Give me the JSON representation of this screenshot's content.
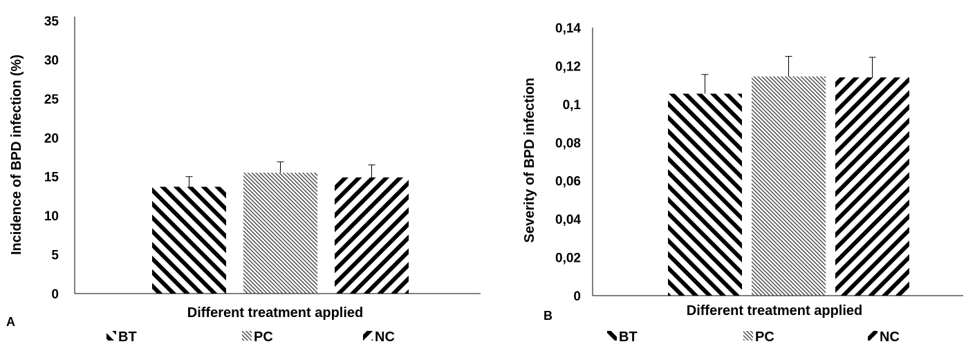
{
  "chart_data": [
    {
      "panel_label": "A",
      "type": "bar",
      "categories": [
        "BT",
        "PC",
        "NC"
      ],
      "series": [
        {
          "name": "BT",
          "value": 13.7,
          "error": 1.3
        },
        {
          "name": "PC",
          "value": 15.5,
          "error": 1.4
        },
        {
          "name": "NC",
          "value": 14.9,
          "error": 1.6
        }
      ],
      "xlabel": "Different treatment applied",
      "ylabel": "Incidence of BPD infection (%)",
      "ylim": [
        0,
        35
      ],
      "yticks": [
        "0",
        "5",
        "10",
        "15",
        "20",
        "25",
        "30",
        "35"
      ],
      "grid": false,
      "legend": {
        "position": "bottom",
        "entries": [
          "BT",
          "PC",
          "NC"
        ]
      }
    },
    {
      "panel_label": "B",
      "type": "bar",
      "categories": [
        "BT",
        "PC",
        "NC"
      ],
      "series": [
        {
          "name": "BT",
          "value": 0.1055,
          "error": 0.01
        },
        {
          "name": "PC",
          "value": 0.1145,
          "error": 0.0105
        },
        {
          "name": "NC",
          "value": 0.114,
          "error": 0.0105
        }
      ],
      "xlabel": "Different treatment applied",
      "ylabel": "Severity of BPD infection",
      "ylim": [
        0,
        0.14
      ],
      "yticks": [
        "0",
        "0,02",
        "0,04",
        "0,06",
        "0,08",
        "0,1",
        "0,12",
        "0,14"
      ],
      "grid": false,
      "legend": {
        "position": "bottom",
        "entries": [
          "BT",
          "PC",
          "NC"
        ]
      }
    }
  ]
}
